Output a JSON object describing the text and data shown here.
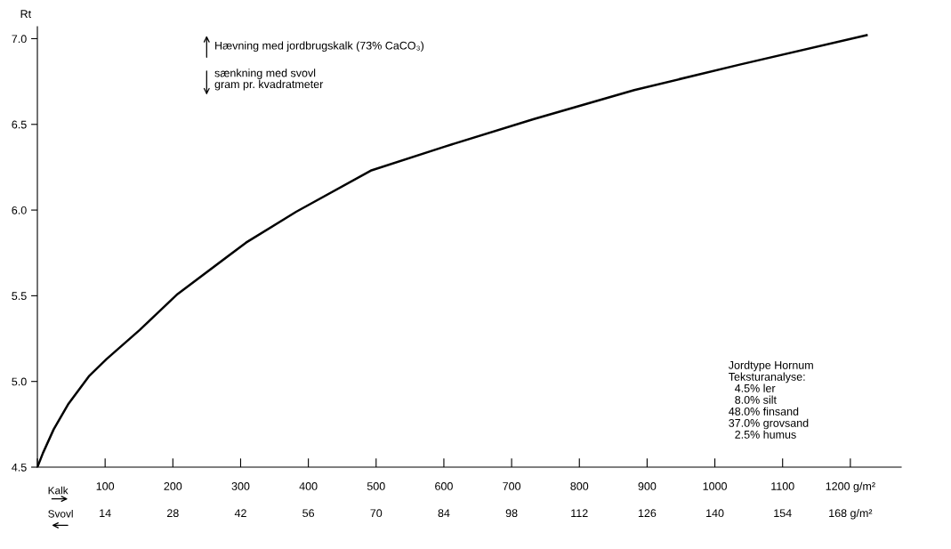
{
  "chart_data": {
    "type": "line",
    "ylabel": "Rt",
    "x": [
      0,
      8,
      24,
      46,
      76,
      102,
      151,
      207,
      308,
      382,
      492,
      601,
      732,
      881,
      1038,
      1224
    ],
    "series": [
      {
        "color": "#000000",
        "values": [
          4.5,
          4.58,
          4.72,
          4.87,
          5.03,
          5.13,
          5.3,
          5.51,
          5.81,
          5.99,
          6.23,
          6.37,
          6.53,
          6.7,
          6.85,
          7.02
        ]
      }
    ],
    "xlim": [
      0,
      1275
    ],
    "ylim": [
      4.5,
      7.07
    ],
    "xticks": [
      {
        "value": 0,
        "label": null
      },
      100,
      200,
      300,
      400,
      500,
      600,
      700,
      800,
      900,
      1000,
      1100,
      {
        "value": 1200,
        "label": "1200 g/m²"
      }
    ],
    "x2lim": [
      0,
      178.5
    ],
    "x2ticks": [
      14,
      28,
      42,
      56,
      70,
      84,
      98,
      112,
      126,
      140,
      154,
      {
        "value": 168,
        "label": "168 g/m²"
      }
    ],
    "yticks": [
      {
        "value": 4.5,
        "label": "4.5"
      },
      {
        "value": 5.0,
        "label": "5.0"
      },
      {
        "value": 5.5,
        "label": "5.5"
      },
      {
        "value": 6.0,
        "label": "6.0"
      },
      {
        "value": 6.5,
        "label": "6.5"
      },
      {
        "value": 7.0,
        "label": "7.0"
      }
    ],
    "grid": false,
    "legend": false,
    "marker": "none",
    "line_style": "solid",
    "annotations": [
      "Hævning med jordbrugskalk (73% CaCO₃)",
      "sænkning med svovl\ngram pr. kvadratmeter",
      "Jordtype Hornum\nTeksturanalyse:\n  4.5% ler\n  8.0% silt\n48.0% finsand\n37.0% grovsand\n  2.5% humus",
      "Kalk",
      "Svovl"
    ]
  }
}
